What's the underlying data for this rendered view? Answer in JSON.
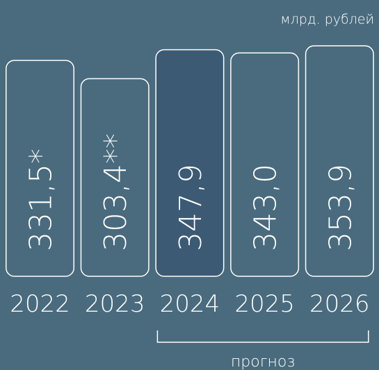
{
  "chart_data": {
    "type": "bar",
    "unit_label": "млрд. рублей",
    "categories": [
      "2022",
      "2023",
      "2024",
      "2025",
      "2026"
    ],
    "values": [
      331.5,
      303.4,
      347.9,
      343.0,
      353.9
    ],
    "value_labels": [
      "331,5*",
      "303,4**",
      "347,9",
      "343,0",
      "353,9"
    ],
    "colors": [
      "#4a6b7d",
      "#4a6b7d",
      "#3c5a73",
      "#4a6b7d",
      "#4a6b7d"
    ],
    "bracket": {
      "label": "прогноз",
      "from": 2,
      "to": 4
    }
  }
}
